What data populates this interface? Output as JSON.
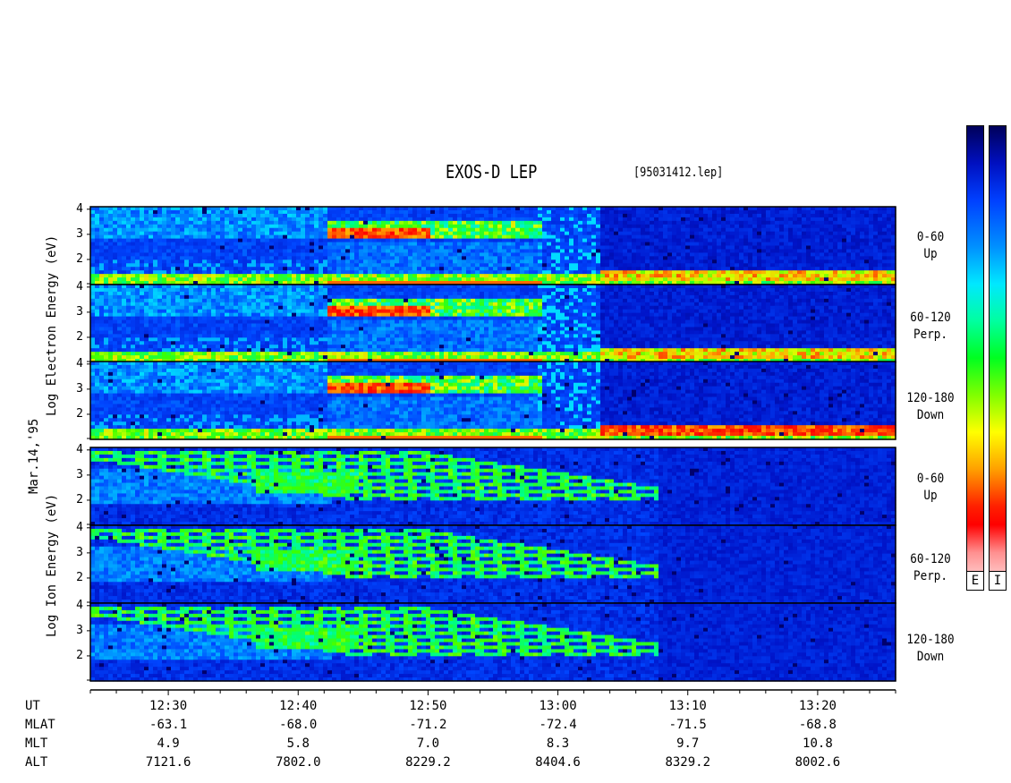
{
  "header": {
    "title": "EXOS-D LEP",
    "filename": "[95031412.lep]"
  },
  "side_labels": {
    "electron_axis": "Log  Electron  Energy (eV)",
    "ion_axis": "Log  Ion  Energy (eV)",
    "date": "Mar.14,'95"
  },
  "colorbars": [
    {
      "label": "E"
    },
    {
      "label": "I"
    }
  ],
  "chart_data": {
    "type": "heatmap",
    "title": "EXOS-D LEP",
    "x_axis": {
      "quantity": "UT",
      "range": [
        "12:24",
        "13:26"
      ],
      "tick_labels": [
        "12:30",
        "12:40",
        "12:50",
        "13:00",
        "13:10",
        "13:20"
      ]
    },
    "y_axis": {
      "quantity": "Log Energy (eV)",
      "tick_labels": [
        "2",
        "3",
        "4"
      ],
      "range": [
        1,
        4.1
      ]
    },
    "panels": [
      {
        "species": "Electron",
        "pitch_angle": "0-60",
        "direction": "Up"
      },
      {
        "species": "Electron",
        "pitch_angle": "60-120",
        "direction": "Perp."
      },
      {
        "species": "Electron",
        "pitch_angle": "120-180",
        "direction": "Down"
      },
      {
        "species": "Ion",
        "pitch_angle": "0-60",
        "direction": "Up"
      },
      {
        "species": "Ion",
        "pitch_angle": "60-120",
        "direction": "Perp."
      },
      {
        "species": "Ion",
        "pitch_angle": "120-180",
        "direction": "Down"
      }
    ],
    "ephemeris": {
      "rows": [
        {
          "label": "UT",
          "values": [
            "12:30",
            "12:40",
            "12:50",
            "13:00",
            "13:10",
            "13:20"
          ]
        },
        {
          "label": "MLAT",
          "values": [
            "-63.1",
            "-68.0",
            "-71.2",
            "-72.4",
            "-71.5",
            "-68.8"
          ]
        },
        {
          "label": "MLT",
          "values": [
            "4.9",
            "5.8",
            "7.0",
            "8.3",
            "9.7",
            "10.8"
          ]
        },
        {
          "label": "ALT",
          "values": [
            "7121.6",
            "7802.0",
            "8229.2",
            "8404.6",
            "8329.2",
            "8002.6"
          ]
        }
      ]
    },
    "colorscale": [
      "#00005a",
      "#0010c0",
      "#0040ff",
      "#0090ff",
      "#00e8ff",
      "#00ffa0",
      "#00ff20",
      "#80ff00",
      "#ffff00",
      "#ffa000",
      "#ff2000",
      "#ff9090",
      "#ffe8e8"
    ],
    "legend_placement": "right"
  }
}
